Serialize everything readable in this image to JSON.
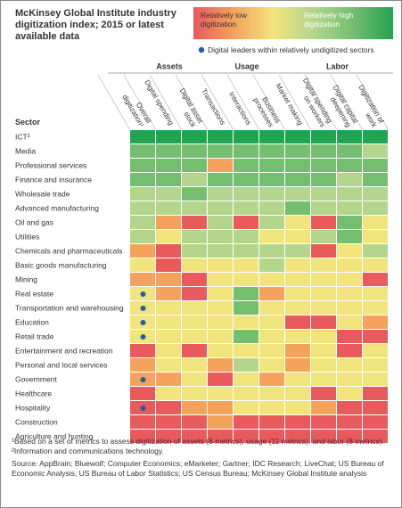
{
  "chart_data": {
    "type": "heatmap",
    "title": "McKinsey Global Institute industry digitization index; 2015 or latest available data",
    "legend": {
      "low": "Relatively low digitization",
      "high": "Relatively high digitization",
      "leaders": "Digital leaders within relatively undigitized sectors"
    },
    "row_header": "Sector",
    "groups": [
      {
        "name": "Assets",
        "columns": [
          1,
          2
        ]
      },
      {
        "name": "Usage",
        "columns": [
          3,
          6
        ]
      },
      {
        "name": "Labor",
        "columns": [
          7,
          9
        ]
      }
    ],
    "columns": [
      "Overall digitization¹",
      "Digital spending",
      "Digital asset stock",
      "Transactions",
      "Interactions",
      "Business processes",
      "Market making",
      "Digital spending on workers",
      "Digital capital deepening",
      "Digitization of work"
    ],
    "rows": [
      "ICT²",
      "Media",
      "Professional services",
      "Finance and insurance",
      "Wholesale trade",
      "Advanced manufacturing",
      "Oil and gas",
      "Utilities",
      "Chemicals and pharmaceuticals",
      "Basic goods manufacturing",
      "Mining",
      "Real estate",
      "Transportation and warehousing",
      "Education",
      "Retail trade",
      "Entertainment and recreation",
      "Personal and local services",
      "Government",
      "Healthcare",
      "Hospitality",
      "Construction",
      "Agriculture and hunting"
    ],
    "colors": [
      "#e85a5c",
      "#f4a25c",
      "#f2e47c",
      "#b4d68c",
      "#74be70",
      "#22a352"
    ],
    "values": [
      [
        6,
        6,
        6,
        6,
        6,
        6,
        6,
        6,
        6,
        6
      ],
      [
        5,
        5,
        5,
        5,
        5,
        5,
        5,
        5,
        5,
        4
      ],
      [
        5,
        5,
        5,
        2,
        5,
        5,
        5,
        5,
        5,
        5
      ],
      [
        5,
        5,
        4,
        5,
        5,
        5,
        5,
        5,
        4,
        5
      ],
      [
        4,
        4,
        5,
        4,
        4,
        4,
        4,
        4,
        4,
        4
      ],
      [
        4,
        4,
        4,
        4,
        4,
        4,
        5,
        4,
        4,
        4
      ],
      [
        4,
        2,
        1,
        4,
        1,
        4,
        3,
        1,
        5,
        3
      ],
      [
        4,
        3,
        4,
        4,
        4,
        3,
        3,
        4,
        5,
        3
      ],
      [
        2,
        1,
        4,
        4,
        4,
        4,
        4,
        1,
        3,
        4
      ],
      [
        3,
        1,
        3,
        3,
        3,
        4,
        3,
        3,
        3,
        3
      ],
      [
        2,
        2,
        1,
        3,
        3,
        3,
        3,
        3,
        3,
        1
      ],
      [
        3,
        2,
        1,
        3,
        5,
        2,
        3,
        3,
        3,
        3
      ],
      [
        3,
        3,
        3,
        3,
        5,
        3,
        3,
        3,
        3,
        3
      ],
      [
        3,
        3,
        3,
        3,
        3,
        3,
        1,
        1,
        3,
        2
      ],
      [
        3,
        3,
        3,
        3,
        5,
        3,
        3,
        3,
        1,
        1
      ],
      [
        1,
        3,
        1,
        3,
        3,
        3,
        2,
        3,
        1,
        3
      ],
      [
        2,
        3,
        3,
        2,
        4,
        3,
        2,
        3,
        3,
        3
      ],
      [
        2,
        2,
        3,
        1,
        3,
        2,
        3,
        3,
        3,
        3
      ],
      [
        1,
        3,
        3,
        3,
        3,
        3,
        3,
        1,
        3,
        1
      ],
      [
        1,
        1,
        2,
        2,
        3,
        3,
        3,
        2,
        1,
        1
      ],
      [
        1,
        1,
        1,
        2,
        1,
        1,
        1,
        1,
        1,
        1
      ],
      [
        1,
        1,
        1,
        1,
        1,
        1,
        1,
        1,
        1,
        1
      ]
    ],
    "leaders": [
      11,
      12,
      13,
      14,
      17,
      19
    ],
    "leader_color": "#1f5fa8",
    "footnotes": [
      "¹Based on a set of metrics to assess digitization of assets (8 metrics), usage (11 metrics), and labor (8 metrics).",
      "²Information and communications technology."
    ],
    "source": "Source: AppBrain; Bluewolf; Computer Economics; eMarketer; Gartner; IDC Research; LiveChat; US Bureau of Economic Analysis; US Bureau of Labor Statistics; US Census Bureau; McKinsey Global Institute analysis"
  }
}
